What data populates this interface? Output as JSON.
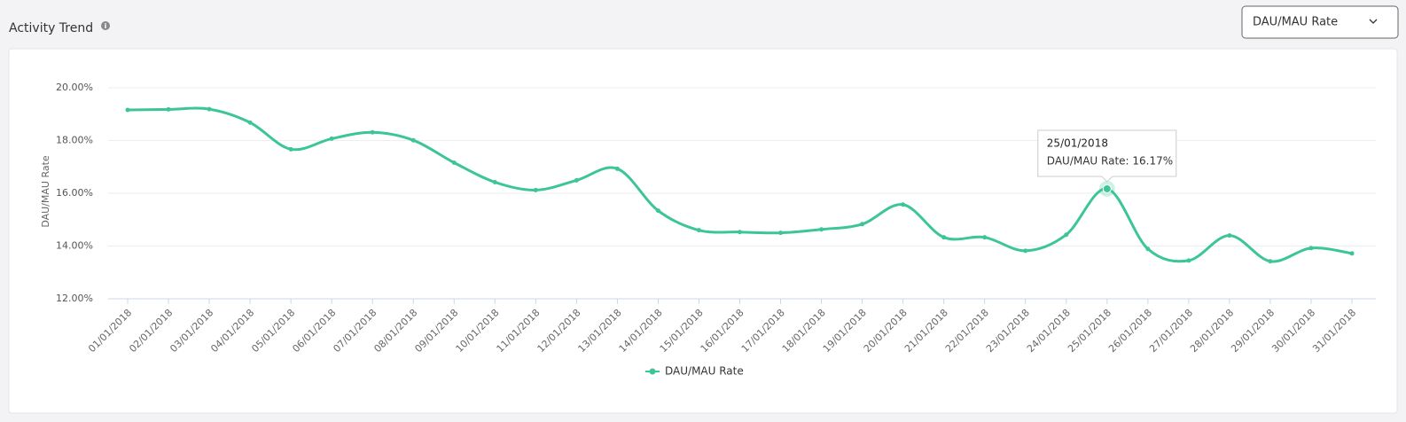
{
  "page_title": "Activity Trend",
  "selector": "DAU/MAU Rate",
  "chart_data": {
    "type": "line",
    "y_label": "DAU/MAU Rate",
    "categories": [
      "01/01/2018",
      "02/01/2018",
      "03/01/2018",
      "04/01/2018",
      "05/01/2018",
      "06/01/2018",
      "07/01/2018",
      "08/01/2018",
      "09/01/2018",
      "10/01/2018",
      "11/01/2018",
      "12/01/2018",
      "13/01/2018",
      "14/01/2018",
      "15/01/2018",
      "16/01/2018",
      "17/01/2018",
      "18/01/2018",
      "19/01/2018",
      "20/01/2018",
      "21/01/2018",
      "22/01/2018",
      "23/01/2018",
      "24/01/2018",
      "25/01/2018",
      "26/01/2018",
      "27/01/2018",
      "28/01/2018",
      "29/01/2018",
      "30/01/2018",
      "31/01/2018"
    ],
    "series": [
      {
        "name": "DAU/MAU Rate",
        "color": "#3cc597",
        "values": [
          19.16,
          19.18,
          19.19,
          18.68,
          17.67,
          18.07,
          18.31,
          18.01,
          17.16,
          16.42,
          16.12,
          16.49,
          16.93,
          15.34,
          14.6,
          14.53,
          14.5,
          14.63,
          14.83,
          15.57,
          14.33,
          14.33,
          13.82,
          14.43,
          16.17,
          13.89,
          13.45,
          14.4,
          13.42,
          13.92,
          13.72
        ]
      }
    ],
    "ylim": [
      12,
      20
    ],
    "yticks": [
      {
        "value": 12,
        "label": "12.00%"
      },
      {
        "value": 14,
        "label": "14.00%"
      },
      {
        "value": 16,
        "label": "16.00%"
      },
      {
        "value": 18,
        "label": "18.00%"
      },
      {
        "value": 20,
        "label": "20.00%"
      }
    ],
    "grid": true,
    "legend": "bottom",
    "tooltip": {
      "title": "25/01/2018",
      "label": "DAU/MAU Rate: 16.17%"
    }
  }
}
